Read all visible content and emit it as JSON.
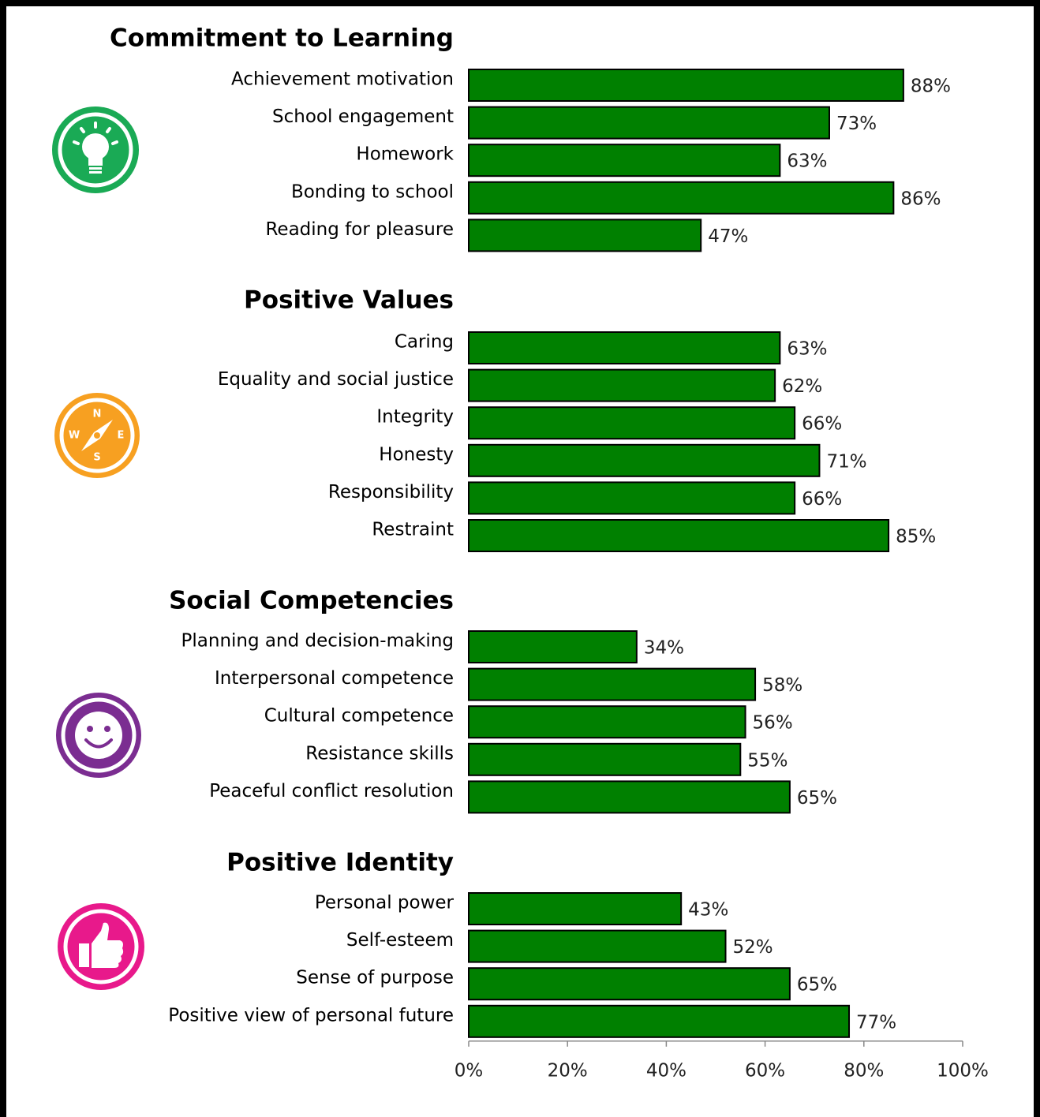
{
  "chart_data": [
    {
      "type": "bar",
      "title": "Commitment to Learning",
      "color": "#008000",
      "categories": [
        "Achievement motivation",
        "School engagement",
        "Homework",
        "Bonding to school",
        "Reading for pleasure"
      ],
      "values": [
        88,
        73,
        63,
        86,
        47
      ],
      "value_labels": [
        "88%",
        "73%",
        "63%",
        "86%",
        "47%"
      ],
      "xlim": [
        0,
        100
      ]
    },
    {
      "type": "bar",
      "title": "Positive Values",
      "color": "#008000",
      "categories": [
        "Caring",
        "Equality and social justice",
        "Integrity",
        "Honesty",
        "Responsibility",
        "Restraint"
      ],
      "values": [
        63,
        62,
        66,
        71,
        66,
        85
      ],
      "value_labels": [
        "63%",
        "62%",
        "66%",
        "71%",
        "66%",
        "85%"
      ],
      "xlim": [
        0,
        100
      ]
    },
    {
      "type": "bar",
      "title": "Social Competencies",
      "color": "#008000",
      "categories": [
        "Planning and decision-making",
        "Interpersonal competence",
        "Cultural competence",
        "Resistance skills",
        "Peaceful conflict resolution"
      ],
      "values": [
        34,
        58,
        56,
        55,
        65
      ],
      "value_labels": [
        "34%",
        "58%",
        "56%",
        "55%",
        "65%"
      ],
      "xlim": [
        0,
        100
      ]
    },
    {
      "type": "bar",
      "title": "Positive Identity",
      "color": "#008000",
      "categories": [
        "Personal power",
        "Self-esteem",
        "Sense of purpose",
        "Positive view of personal future"
      ],
      "values": [
        43,
        52,
        65,
        77
      ],
      "value_labels": [
        "43%",
        "52%",
        "65%",
        "77%"
      ],
      "xlim": [
        0,
        100
      ],
      "xticks": [
        {
          "value": 0,
          "label": "0%"
        },
        {
          "value": 20,
          "label": "20%"
        },
        {
          "value": 40,
          "label": "40%"
        },
        {
          "value": 60,
          "label": "60%"
        },
        {
          "value": 80,
          "label": "80%"
        },
        {
          "value": 100,
          "label": "100%"
        }
      ]
    }
  ],
  "compass": [
    "N",
    "W",
    "E",
    "S"
  ]
}
